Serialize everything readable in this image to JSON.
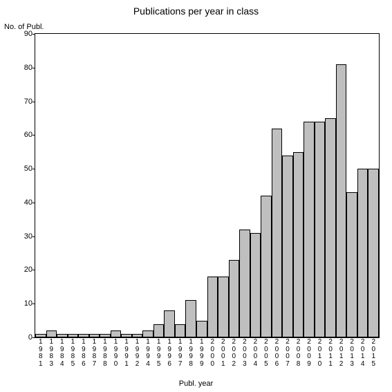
{
  "chart": {
    "type": "bar",
    "title": "Publications per year in class",
    "ylabel": "No. of Publ.",
    "xlabel": "Publ. year",
    "title_fontsize": 14,
    "label_fontsize": 11,
    "tick_fontsize": 11,
    "xtick_fontsize": 10,
    "background_color": "#ffffff",
    "bar_color": "#bfbfbf",
    "bar_border_color": "#000000",
    "axis_color": "#000000",
    "text_color": "#000000",
    "ylim": [
      0,
      90
    ],
    "yticks": [
      0,
      10,
      20,
      30,
      40,
      50,
      60,
      70,
      80,
      90
    ],
    "categories": [
      "1981",
      "1983",
      "1984",
      "1985",
      "1986",
      "1987",
      "1988",
      "1990",
      "1991",
      "1992",
      "1994",
      "1995",
      "1996",
      "1997",
      "1998",
      "1999",
      "2000",
      "2001",
      "2002",
      "2003",
      "2004",
      "2005",
      "2006",
      "2007",
      "2008",
      "2009",
      "2010",
      "2011",
      "2012",
      "2013",
      "2014",
      "2015"
    ],
    "values": [
      1,
      2,
      1,
      1,
      1,
      1,
      1,
      2,
      1,
      1,
      2,
      4,
      8,
      4,
      11,
      5,
      18,
      18,
      23,
      32,
      31,
      42,
      62,
      54,
      55,
      64,
      64,
      65,
      81,
      43,
      50,
      50
    ],
    "bar_width_ratio": 1.0
  }
}
